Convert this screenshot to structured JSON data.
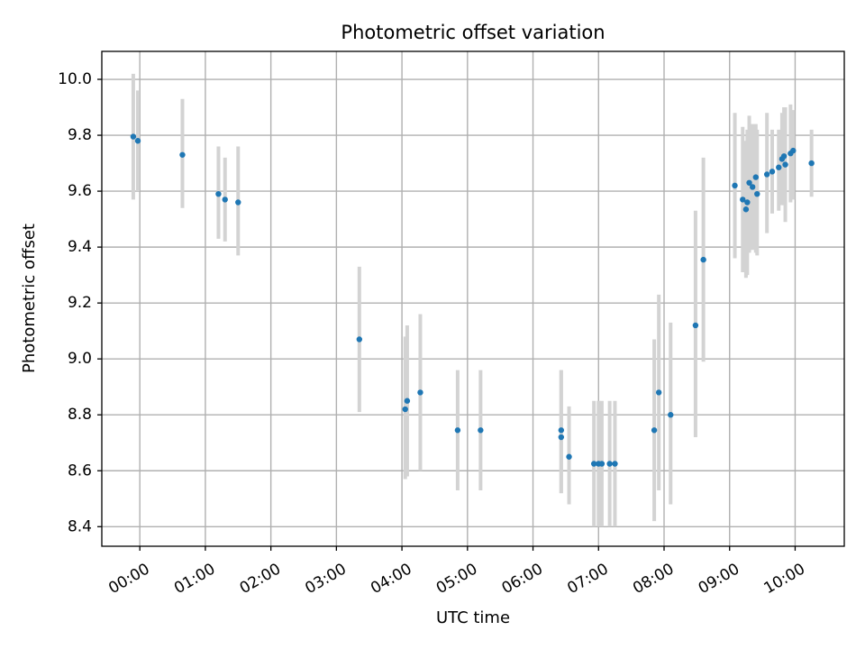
{
  "chart_data": {
    "type": "scatter",
    "title": "Photometric offset variation",
    "xlabel": "UTC time",
    "ylabel": "Photometric offset",
    "x_unit": "hours UTC",
    "xlim": [
      -0.58,
      10.75
    ],
    "ylim": [
      8.33,
      10.1
    ],
    "x_ticks": [
      0,
      1,
      2,
      3,
      4,
      5,
      6,
      7,
      8,
      9,
      10
    ],
    "x_tick_labels": [
      "00:00",
      "01:00",
      "02:00",
      "03:00",
      "04:00",
      "05:00",
      "06:00",
      "07:00",
      "08:00",
      "09:00",
      "10:00"
    ],
    "y_ticks": [
      8.4,
      8.6,
      8.8,
      9.0,
      9.2,
      9.4,
      9.6,
      9.8,
      10.0
    ],
    "y_tick_labels": [
      "8.4",
      "8.6",
      "8.8",
      "9.0",
      "9.2",
      "9.4",
      "9.6",
      "9.8",
      "10.0"
    ],
    "grid": true,
    "colors": {
      "points": "#1f77b4",
      "error_bars": "#d3d3d3"
    },
    "series": [
      {
        "points": [
          {
            "x": -0.1,
            "y": 9.795,
            "lo": 9.57,
            "hi": 10.02
          },
          {
            "x": -0.03,
            "y": 9.78,
            "lo": 9.6,
            "hi": 9.96
          },
          {
            "x": 0.65,
            "y": 9.73,
            "lo": 9.54,
            "hi": 9.93
          },
          {
            "x": 1.2,
            "y": 9.59,
            "lo": 9.43,
            "hi": 9.76
          },
          {
            "x": 1.3,
            "y": 9.57,
            "lo": 9.42,
            "hi": 9.72
          },
          {
            "x": 1.5,
            "y": 9.56,
            "lo": 9.37,
            "hi": 9.76
          },
          {
            "x": 3.35,
            "y": 9.07,
            "lo": 8.81,
            "hi": 9.33
          },
          {
            "x": 4.05,
            "y": 8.82,
            "lo": 8.57,
            "hi": 9.08
          },
          {
            "x": 4.08,
            "y": 8.85,
            "lo": 8.58,
            "hi": 9.12
          },
          {
            "x": 4.28,
            "y": 8.88,
            "lo": 8.6,
            "hi": 9.16
          },
          {
            "x": 4.85,
            "y": 8.745,
            "lo": 8.53,
            "hi": 8.96
          },
          {
            "x": 5.2,
            "y": 8.745,
            "lo": 8.53,
            "hi": 8.96
          },
          {
            "x": 6.43,
            "y": 8.745,
            "lo": 8.52,
            "hi": 8.96
          },
          {
            "x": 6.43,
            "y": 8.72,
            "lo": 8.52,
            "hi": 8.96
          },
          {
            "x": 6.55,
            "y": 8.65,
            "lo": 8.48,
            "hi": 8.83
          },
          {
            "x": 6.93,
            "y": 8.625,
            "lo": 8.4,
            "hi": 8.85
          },
          {
            "x": 7.0,
            "y": 8.625,
            "lo": 8.4,
            "hi": 8.85
          },
          {
            "x": 7.05,
            "y": 8.625,
            "lo": 8.4,
            "hi": 8.85
          },
          {
            "x": 7.17,
            "y": 8.625,
            "lo": 8.4,
            "hi": 8.85
          },
          {
            "x": 7.25,
            "y": 8.625,
            "lo": 8.4,
            "hi": 8.85
          },
          {
            "x": 7.85,
            "y": 8.745,
            "lo": 8.42,
            "hi": 9.07
          },
          {
            "x": 7.92,
            "y": 8.88,
            "lo": 8.53,
            "hi": 9.23
          },
          {
            "x": 8.1,
            "y": 8.8,
            "lo": 8.48,
            "hi": 9.13
          },
          {
            "x": 8.48,
            "y": 9.12,
            "lo": 8.72,
            "hi": 9.53
          },
          {
            "x": 8.6,
            "y": 9.355,
            "lo": 8.99,
            "hi": 9.72
          },
          {
            "x": 9.08,
            "y": 9.62,
            "lo": 9.36,
            "hi": 9.88
          },
          {
            "x": 9.2,
            "y": 9.57,
            "lo": 9.31,
            "hi": 9.83
          },
          {
            "x": 9.25,
            "y": 9.535,
            "lo": 9.29,
            "hi": 9.78
          },
          {
            "x": 9.27,
            "y": 9.56,
            "lo": 9.3,
            "hi": 9.82
          },
          {
            "x": 9.3,
            "y": 9.63,
            "lo": 9.38,
            "hi": 9.87
          },
          {
            "x": 9.35,
            "y": 9.615,
            "lo": 9.39,
            "hi": 9.84
          },
          {
            "x": 9.4,
            "y": 9.65,
            "lo": 9.38,
            "hi": 9.84
          },
          {
            "x": 9.42,
            "y": 9.59,
            "lo": 9.37,
            "hi": 9.82
          },
          {
            "x": 9.57,
            "y": 9.66,
            "lo": 9.45,
            "hi": 9.88
          },
          {
            "x": 9.65,
            "y": 9.67,
            "lo": 9.52,
            "hi": 9.82
          },
          {
            "x": 9.75,
            "y": 9.685,
            "lo": 9.53,
            "hi": 9.82
          },
          {
            "x": 9.8,
            "y": 9.715,
            "lo": 9.55,
            "hi": 9.88
          },
          {
            "x": 9.83,
            "y": 9.725,
            "lo": 9.55,
            "hi": 9.9
          },
          {
            "x": 9.85,
            "y": 9.695,
            "lo": 9.49,
            "hi": 9.9
          },
          {
            "x": 9.93,
            "y": 9.735,
            "lo": 9.56,
            "hi": 9.91
          },
          {
            "x": 9.97,
            "y": 9.745,
            "lo": 9.57,
            "hi": 9.89
          },
          {
            "x": 10.25,
            "y": 9.7,
            "lo": 9.58,
            "hi": 9.82
          }
        ]
      }
    ]
  }
}
